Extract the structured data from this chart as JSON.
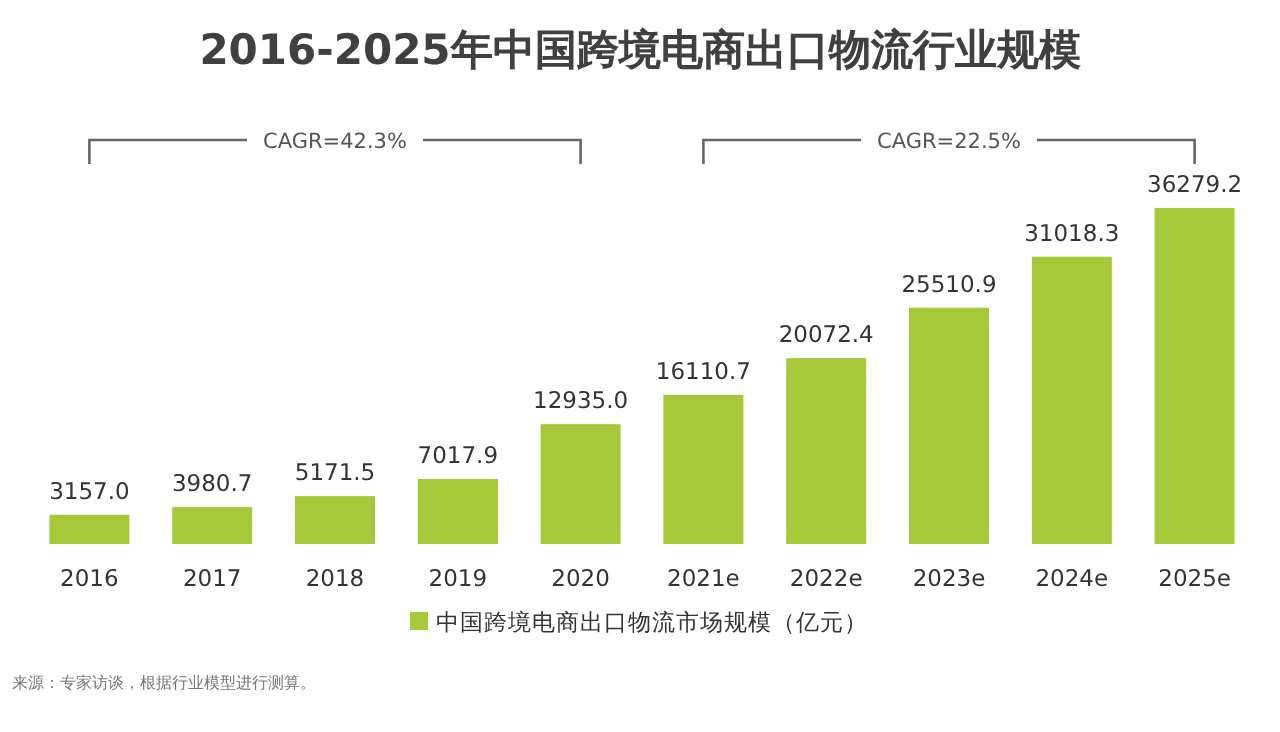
{
  "chart_data": {
    "type": "bar",
    "title": "2016-2025年中国跨境电商出口物流行业规模",
    "categories": [
      "2016",
      "2017",
      "2018",
      "2019",
      "2020",
      "2021e",
      "2022e",
      "2023e",
      "2024e",
      "2025e"
    ],
    "series": [
      {
        "name": "中国跨境电商出口物流市场规模（亿元）",
        "color": "#a6c93a",
        "values": [
          3157.0,
          3980.7,
          5171.5,
          7017.9,
          12935.0,
          16110.7,
          20072.4,
          25510.9,
          31018.3,
          36279.2
        ],
        "value_labels": [
          "3157.0",
          "3980.7",
          "5171.5",
          "7017.9",
          "12935.0",
          "16110.7",
          "20072.4",
          "25510.9",
          "31018.3",
          "36279.2"
        ]
      }
    ],
    "annotations": [
      "CAGR=42.3%",
      "CAGR=22.5%",
      "来源：专家访谈，根据行业模型进行测算。"
    ],
    "legend": "bottom"
  }
}
